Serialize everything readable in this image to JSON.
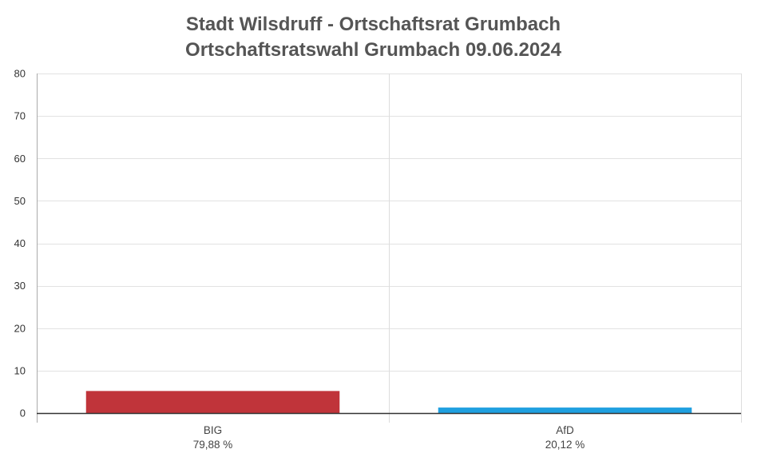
{
  "chart_data": {
    "type": "bar",
    "title": "Stadt Wilsdruff - Ortschaftsrat Grumbach",
    "subtitle": "Ortschaftsratswahl Grumbach 09.06.2024",
    "categories": [
      "BIG",
      "AfD"
    ],
    "category_labels": [
      "79,88 %",
      "20,12 %"
    ],
    "values": [
      5.2,
      1.3
    ],
    "colors": [
      "#c0343a",
      "#1fa0e0"
    ],
    "ylim": [
      0,
      80
    ],
    "yticks": [
      0,
      10,
      20,
      30,
      40,
      50,
      60,
      70,
      80
    ],
    "xlabel": "",
    "ylabel": "",
    "grid": true
  }
}
